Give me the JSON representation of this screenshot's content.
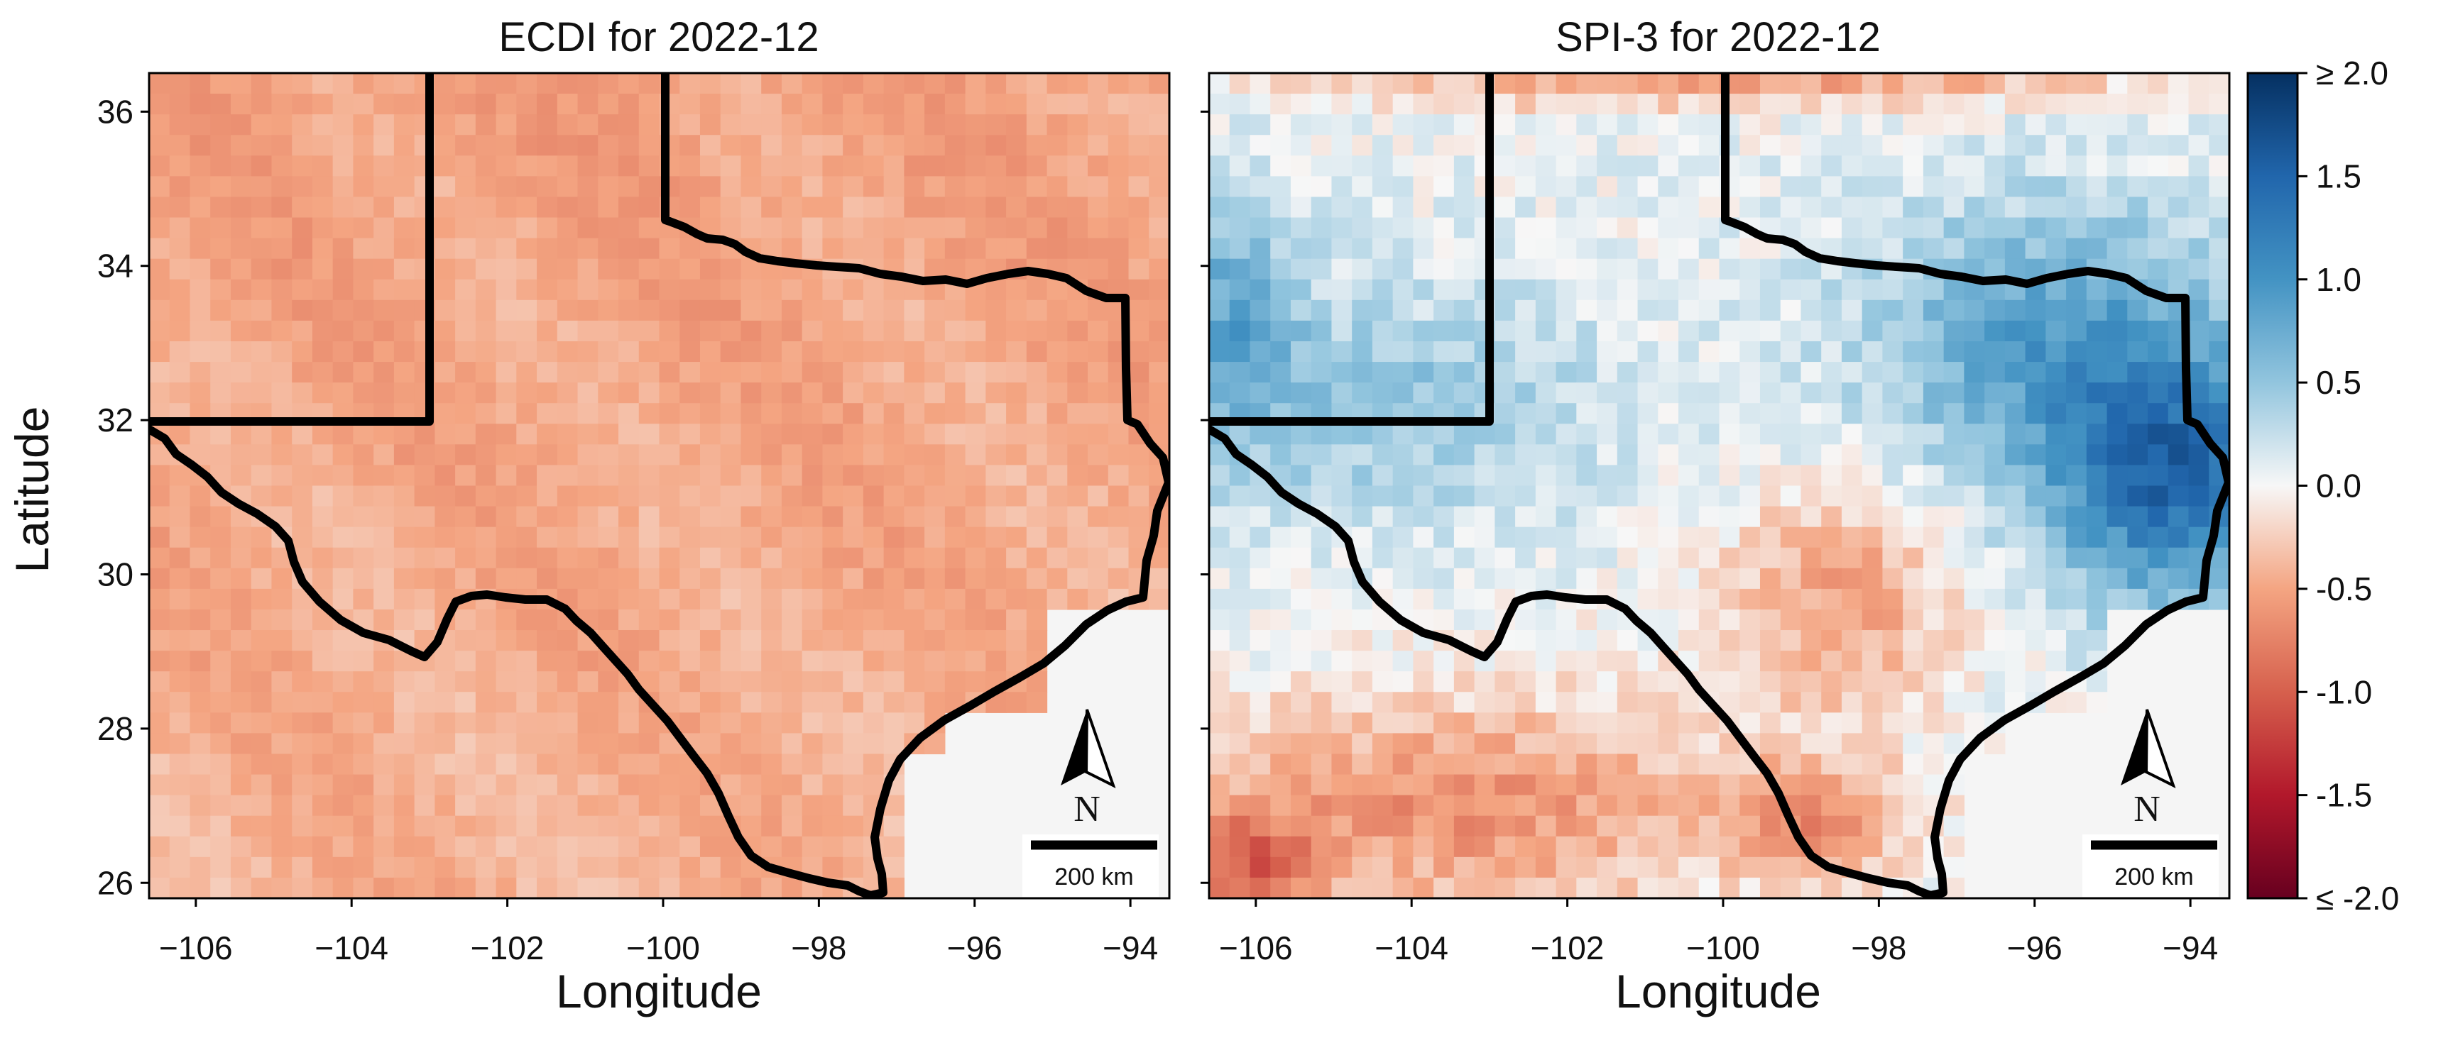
{
  "figure": {
    "y_axis_label": "Latitude",
    "x_axis_label": "Longitude"
  },
  "map_panels": [
    {
      "title": "ECDI for 2022-12",
      "scale_bar": "200 km",
      "north_arrow": "N"
    },
    {
      "title": "SPI-3 for 2022-12",
      "scale_bar": "200 km",
      "north_arrow": "N"
    }
  ],
  "axes": {
    "x_ticks": [
      "−106",
      "−104",
      "−102",
      "−100",
      "−98",
      "−96",
      "−94"
    ],
    "y_ticks": [
      "26",
      "28",
      "30",
      "32",
      "34",
      "36"
    ],
    "x_tick_values": [
      -106,
      -104,
      -102,
      -100,
      -98,
      -96,
      -94
    ],
    "y_tick_values": [
      26,
      28,
      30,
      32,
      34,
      36
    ],
    "xlim": [
      -106.6,
      -93.5
    ],
    "ylim": [
      25.8,
      36.5
    ]
  },
  "colorbar": {
    "colormap": "RdBu",
    "range": [
      -2.0,
      2.0
    ],
    "tick_labels": [
      "≥ 2.0",
      "1.5",
      "1.0",
      "0.5",
      "0.0",
      "-0.5",
      "-1.0",
      "-1.5",
      "≤ -2.0"
    ],
    "tick_values": [
      2.0,
      1.5,
      1.0,
      0.5,
      0.0,
      -0.5,
      -1.0,
      -1.5,
      -2.0
    ]
  },
  "colors": {
    "dark_red": "#67001f",
    "red": "#d6604d",
    "white": "#f7f7f7",
    "blue": "#4393c3",
    "dark_blue": "#053061",
    "no_data": "#f5f5f5",
    "outline": "#000000"
  }
}
